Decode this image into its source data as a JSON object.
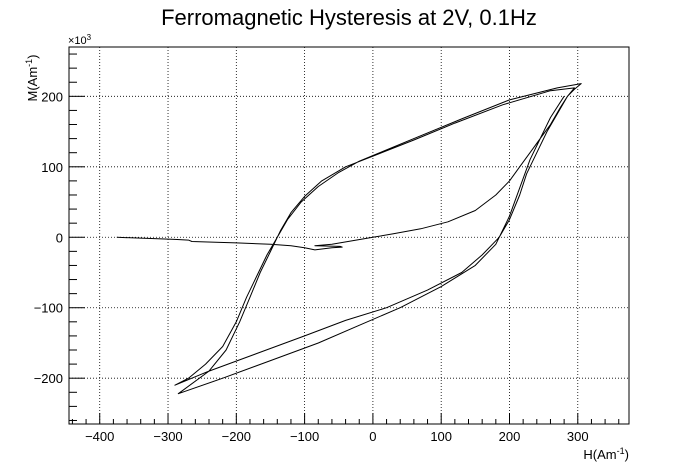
{
  "chart_data": {
    "type": "line",
    "title": "Ferromagnetic Hysteresis at 2V, 0.1Hz",
    "xlabel": "H(Am",
    "xlabel_sup": "-1",
    "xlabel_close": ")",
    "ylabel": "M(Am",
    "ylabel_sup": "-1",
    "ylabel_close": ")",
    "y_multiplier_base": "×10",
    "y_multiplier_exp": "3",
    "xlim": [
      -445,
      375
    ],
    "ylim": [
      -265,
      270
    ],
    "grid": true,
    "x_ticks": [
      -400,
      -300,
      -200,
      -100,
      0,
      100,
      200,
      300
    ],
    "x_tick_labels": [
      "−400",
      "−300",
      "−200",
      "−100",
      "0",
      "100",
      "200",
      "300"
    ],
    "y_ticks": [
      -200,
      -100,
      0,
      100,
      200
    ],
    "y_tick_labels": [
      "−200",
      "−100",
      "0",
      "100",
      "200"
    ],
    "series": [
      {
        "points": [
          [
            -375,
            0
          ],
          [
            -290,
            -3
          ],
          [
            -270,
            -4
          ],
          [
            -265,
            -6
          ],
          [
            -230,
            -7
          ],
          [
            -200,
            -8
          ],
          [
            -150,
            -10
          ],
          [
            -120,
            -12
          ],
          [
            -100,
            -15
          ],
          [
            -85,
            -18
          ],
          [
            -60,
            -15
          ],
          [
            -45,
            -14
          ],
          [
            -48,
            -13
          ],
          [
            -85,
            -12
          ],
          [
            -60,
            -10
          ],
          [
            -30,
            -5
          ],
          [
            0,
            0
          ],
          [
            30,
            5
          ],
          [
            70,
            12
          ],
          [
            110,
            22
          ],
          [
            150,
            38
          ],
          [
            180,
            60
          ],
          [
            200,
            80
          ],
          [
            215,
            100
          ],
          [
            230,
            120
          ],
          [
            245,
            140
          ],
          [
            260,
            160
          ],
          [
            275,
            185
          ],
          [
            285,
            200
          ],
          [
            295,
            210
          ],
          [
            305,
            218
          ],
          [
            270,
            212
          ],
          [
            200,
            195
          ],
          [
            130,
            168
          ],
          [
            60,
            140
          ],
          [
            10,
            120
          ],
          [
            -20,
            108
          ],
          [
            -50,
            92
          ],
          [
            -80,
            72
          ],
          [
            -105,
            50
          ],
          [
            -125,
            25
          ],
          [
            -140,
            0
          ],
          [
            -155,
            -25
          ],
          [
            -170,
            -55
          ],
          [
            -185,
            -85
          ],
          [
            -200,
            -120
          ],
          [
            -220,
            -155
          ],
          [
            -245,
            -180
          ],
          [
            -270,
            -200
          ],
          [
            -290,
            -210
          ],
          [
            -240,
            -190
          ],
          [
            -170,
            -165
          ],
          [
            -100,
            -140
          ],
          [
            -40,
            -118
          ],
          [
            20,
            -100
          ],
          [
            80,
            -75
          ],
          [
            130,
            -50
          ],
          [
            160,
            -25
          ],
          [
            185,
            0
          ],
          [
            200,
            25
          ],
          [
            215,
            60
          ],
          [
            225,
            90
          ],
          [
            240,
            120
          ],
          [
            255,
            150
          ],
          [
            270,
            175
          ],
          [
            285,
            200
          ],
          [
            295,
            212
          ],
          [
            260,
            208
          ],
          [
            190,
            188
          ],
          [
            120,
            162
          ],
          [
            60,
            138
          ],
          [
            0,
            115
          ],
          [
            -40,
            100
          ],
          [
            -75,
            80
          ],
          [
            -100,
            58
          ],
          [
            -120,
            35
          ],
          [
            -135,
            10
          ],
          [
            -150,
            -20
          ],
          [
            -165,
            -50
          ],
          [
            -180,
            -85
          ],
          [
            -195,
            -120
          ],
          [
            -215,
            -160
          ],
          [
            -240,
            -190
          ],
          [
            -285,
            -222
          ],
          [
            -220,
            -200
          ],
          [
            -150,
            -175
          ],
          [
            -80,
            -150
          ],
          [
            -20,
            -125
          ],
          [
            40,
            -100
          ],
          [
            100,
            -70
          ],
          [
            150,
            -40
          ],
          [
            180,
            -10
          ],
          [
            200,
            30
          ],
          [
            215,
            70
          ],
          [
            230,
            110
          ],
          [
            245,
            140
          ],
          [
            260,
            170
          ],
          [
            280,
            200
          ]
        ]
      }
    ]
  }
}
